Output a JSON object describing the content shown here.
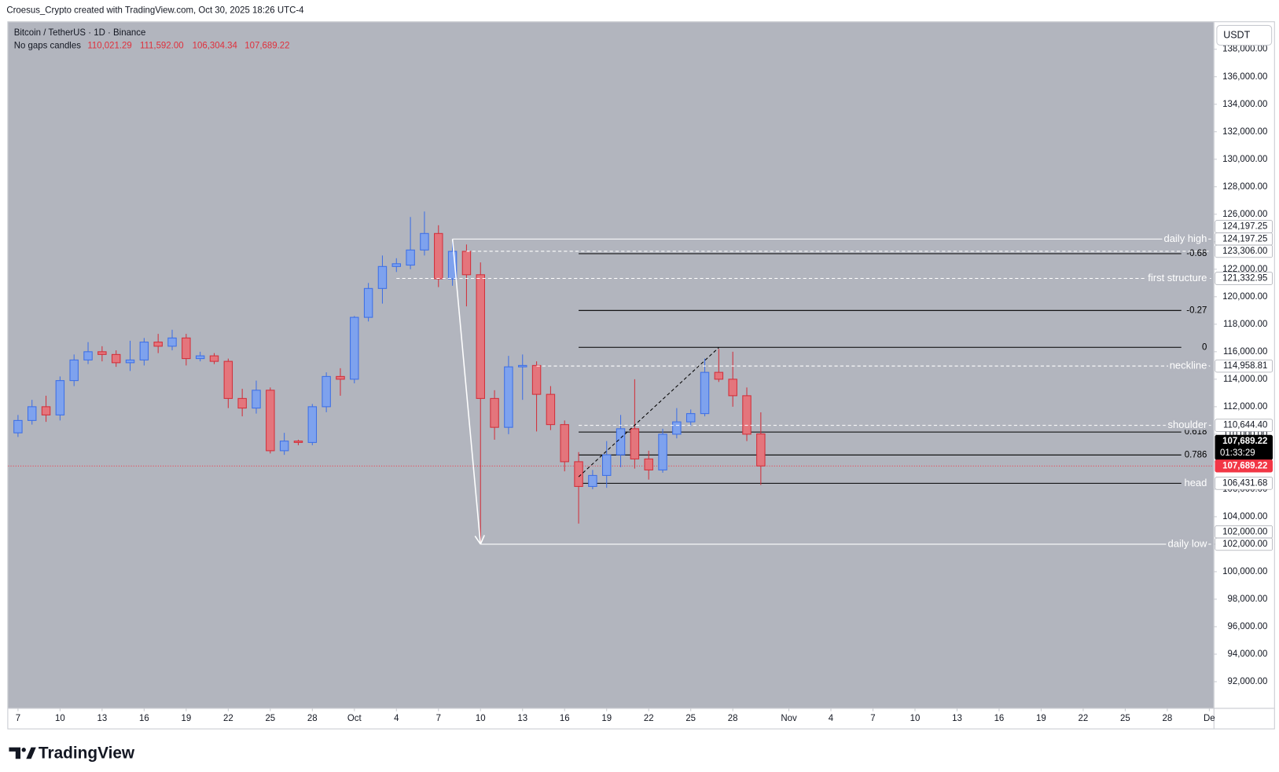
{
  "header": {
    "attribution": "Croesus_Crypto created with TradingView.com, Oct 30, 2025 18:26 UTC-4",
    "symbol": "Bitcoin / TetherUS · 1D · Binance",
    "style": "No gaps candles",
    "ohlc": [
      "110,021.29",
      "111,592.00",
      "106,304.34",
      "107,689.22"
    ],
    "currency": "USDT",
    "brand": "TradingView"
  },
  "chart_data": {
    "type": "candlestick",
    "open": [
      110100,
      111000,
      112000,
      111400,
      113900,
      115400,
      116000,
      115800,
      115200,
      115400,
      116700,
      116400,
      117000,
      115500,
      115700,
      115300,
      112600,
      111900,
      113200,
      108800,
      109500,
      109400,
      112000,
      114200,
      114000,
      118500,
      120600,
      122200,
      122300,
      123400,
      124600,
      121300,
      123300,
      121600,
      112600,
      110500,
      114900,
      115000,
      112900,
      110700,
      108000,
      106200,
      107000,
      108500,
      110400,
      108200,
      107400,
      110000,
      110900,
      111500,
      114500,
      114000,
      112800,
      110021.29
    ],
    "high": [
      111400,
      112500,
      112800,
      114200,
      115800,
      116700,
      116400,
      116100,
      116800,
      117000,
      117300,
      117600,
      117300,
      116000,
      115900,
      115500,
      113300,
      113900,
      113400,
      110100,
      109600,
      112200,
      114500,
      114800,
      118600,
      121000,
      123000,
      122800,
      125800,
      126200,
      125200,
      124197.25,
      123800,
      122500,
      113200,
      115700,
      115800,
      115300,
      113500,
      111000,
      108700,
      107400,
      109500,
      111400,
      114000,
      108800,
      110400,
      111900,
      111800,
      115500,
      116200,
      116000,
      113400,
      111592
    ],
    "low": [
      109800,
      110700,
      110900,
      111000,
      113500,
      115100,
      115300,
      114900,
      114600,
      115000,
      115900,
      116100,
      115000,
      115300,
      115100,
      111900,
      111300,
      111500,
      108600,
      108500,
      109200,
      109200,
      111600,
      112800,
      113700,
      118200,
      119500,
      121800,
      122000,
      123000,
      120700,
      120800,
      119300,
      102000,
      109600,
      110000,
      112500,
      110200,
      110300,
      107300,
      103500,
      106000,
      106100,
      107600,
      107500,
      106700,
      107200,
      109700,
      110600,
      111300,
      113800,
      112000,
      109500,
      106304.34
    ],
    "close": [
      111000,
      112000,
      111400,
      113900,
      115400,
      116000,
      115800,
      115200,
      115400,
      116700,
      116400,
      117000,
      115500,
      115700,
      115300,
      112600,
      111900,
      113200,
      108800,
      109500,
      109400,
      112000,
      114200,
      114000,
      118500,
      120600,
      122200,
      122400,
      123400,
      124600,
      121300,
      123300,
      121600,
      112600,
      110500,
      114900,
      115000,
      112900,
      110700,
      108000,
      106200,
      107000,
      108500,
      110400,
      108200,
      107400,
      110000,
      110900,
      111500,
      114500,
      114000,
      112800,
      110000,
      107689.22
    ],
    "up_color": "#7ea2ee",
    "up_border": "#3d6fe6",
    "down_color": "#e4757c",
    "down_border": "#d22f3a",
    "ylim": [
      90090,
      139970
    ],
    "yticks": [
      {
        "value": 92000,
        "label": "92,000.00"
      },
      {
        "value": 94000,
        "label": "94,000.00"
      },
      {
        "value": 96000,
        "label": "96,000.00"
      },
      {
        "value": 98000,
        "label": "98,000.00"
      },
      {
        "value": 100000,
        "label": "100,000.00"
      },
      {
        "value": 102000,
        "label": "102,000.00"
      },
      {
        "value": 104000,
        "label": "104,000.00"
      },
      {
        "value": 106000,
        "label": "106,000.00"
      },
      {
        "value": 108000,
        "label": "108,000.00"
      },
      {
        "value": 110000,
        "label": "110,000.00"
      },
      {
        "value": 112000,
        "label": "112,000.00"
      },
      {
        "value": 114000,
        "label": "114,000.00"
      },
      {
        "value": 116000,
        "label": "116,000.00"
      },
      {
        "value": 118000,
        "label": "118,000.00"
      },
      {
        "value": 120000,
        "label": "120,000.00"
      },
      {
        "value": 122000,
        "label": "122,000.00"
      },
      {
        "value": 124000,
        "label": "124,000.00"
      },
      {
        "value": 126000,
        "label": "126,000.00"
      },
      {
        "value": 128000,
        "label": "128,000.00"
      },
      {
        "value": 130000,
        "label": "130,000.00"
      },
      {
        "value": 132000,
        "label": "132,000.00"
      },
      {
        "value": 134000,
        "label": "134,000.00"
      },
      {
        "value": 136000,
        "label": "136,000.00"
      },
      {
        "value": 138000,
        "label": "138,000.00"
      }
    ],
    "xlim": [
      -0.7,
      85.3
    ],
    "xticks": [
      {
        "value": 0,
        "label": "7"
      },
      {
        "value": 3,
        "label": "10"
      },
      {
        "value": 6,
        "label": "13"
      },
      {
        "value": 9,
        "label": "16"
      },
      {
        "value": 12,
        "label": "19"
      },
      {
        "value": 15,
        "label": "22"
      },
      {
        "value": 18,
        "label": "25"
      },
      {
        "value": 21,
        "label": "28"
      },
      {
        "value": 24,
        "label": "Oct"
      },
      {
        "value": 27,
        "label": "4"
      },
      {
        "value": 30,
        "label": "7"
      },
      {
        "value": 33,
        "label": "10"
      },
      {
        "value": 36,
        "label": "13"
      },
      {
        "value": 39,
        "label": "16"
      },
      {
        "value": 42,
        "label": "19"
      },
      {
        "value": 45,
        "label": "22"
      },
      {
        "value": 48,
        "label": "25"
      },
      {
        "value": 51,
        "label": "28"
      },
      {
        "value": 55,
        "label": "Nov"
      },
      {
        "value": 58,
        "label": "4"
      },
      {
        "value": 61,
        "label": "7"
      },
      {
        "value": 64,
        "label": "10"
      },
      {
        "value": 67,
        "label": "13"
      },
      {
        "value": 70,
        "label": "16"
      },
      {
        "value": 73,
        "label": "19"
      },
      {
        "value": 76,
        "label": "22"
      },
      {
        "value": 79,
        "label": "25"
      },
      {
        "value": 82,
        "label": "28"
      },
      {
        "value": 85,
        "label": "De"
      }
    ],
    "last_price_color": "#f23645",
    "lines": [
      {
        "label": "daily high",
        "value": 124197.25,
        "from": 31,
        "dash": false,
        "color": "#ffffff"
      },
      {
        "value": 123306,
        "from": 32,
        "dash": true,
        "color": "#ffffff"
      },
      {
        "label": "first structure",
        "value": 121332.95,
        "from": 27,
        "dash": true,
        "color": "#ffffff"
      },
      {
        "label": "neckline",
        "value": 114958.81,
        "from": 37,
        "dash": true,
        "color": "#ffffff"
      },
      {
        "label": "shoulder",
        "value": 110644.4,
        "from": 40,
        "dash": true,
        "color": "#ffffff"
      },
      {
        "label": "head",
        "value": 106431.68,
        "from": 40,
        "dash": false,
        "color": "#000000"
      },
      {
        "label": "daily low",
        "value": 102000,
        "from": 33,
        "dash": false,
        "color": "#ffffff"
      }
    ],
    "fib": {
      "from": 40,
      "to": 83,
      "color": "#000000",
      "levels": [
        {
          "label": "-0.68",
          "value": 123130
        },
        {
          "label": "-0.27",
          "value": 119000
        },
        {
          "label": "0",
          "value": 116320
        },
        {
          "label": "0.618",
          "value": 110160
        },
        {
          "label": "0.786",
          "value": 108490
        },
        {
          "label": "1",
          "value": 106431.68
        }
      ]
    },
    "arrow": {
      "from": [
        31,
        124197.25
      ],
      "to": [
        33,
        102000
      ],
      "color": "#ffffff"
    },
    "trend": {
      "from": [
        40,
        106900
      ],
      "to": [
        50,
        116300
      ],
      "color": "#000000"
    },
    "price_labels": [
      {
        "value": 124197.25,
        "label": "124,197.25",
        "style": "light"
      },
      {
        "value": 124197.25,
        "label": "124,197.25",
        "style": "light"
      },
      {
        "value": 123306,
        "label": "123,306.00",
        "style": "light"
      },
      {
        "value": 121332.95,
        "label": "121,332.95",
        "style": "light"
      },
      {
        "value": 114958.81,
        "label": "114,958.81",
        "style": "light"
      },
      {
        "value": 110644.4,
        "label": "110,644.40",
        "style": "light"
      },
      {
        "value": 107689.22,
        "label": "107,689.22",
        "countdown": "01:33:29",
        "style": "dark"
      },
      {
        "value": 107689.22,
        "label": "107,689.22",
        "style": "red"
      },
      {
        "value": 106431.68,
        "label": "106,431.68",
        "style": "light"
      },
      {
        "value": 102000,
        "label": "102,000.00",
        "style": "light"
      },
      {
        "value": 102000,
        "label": "102,000.00",
        "style": "light"
      }
    ]
  }
}
